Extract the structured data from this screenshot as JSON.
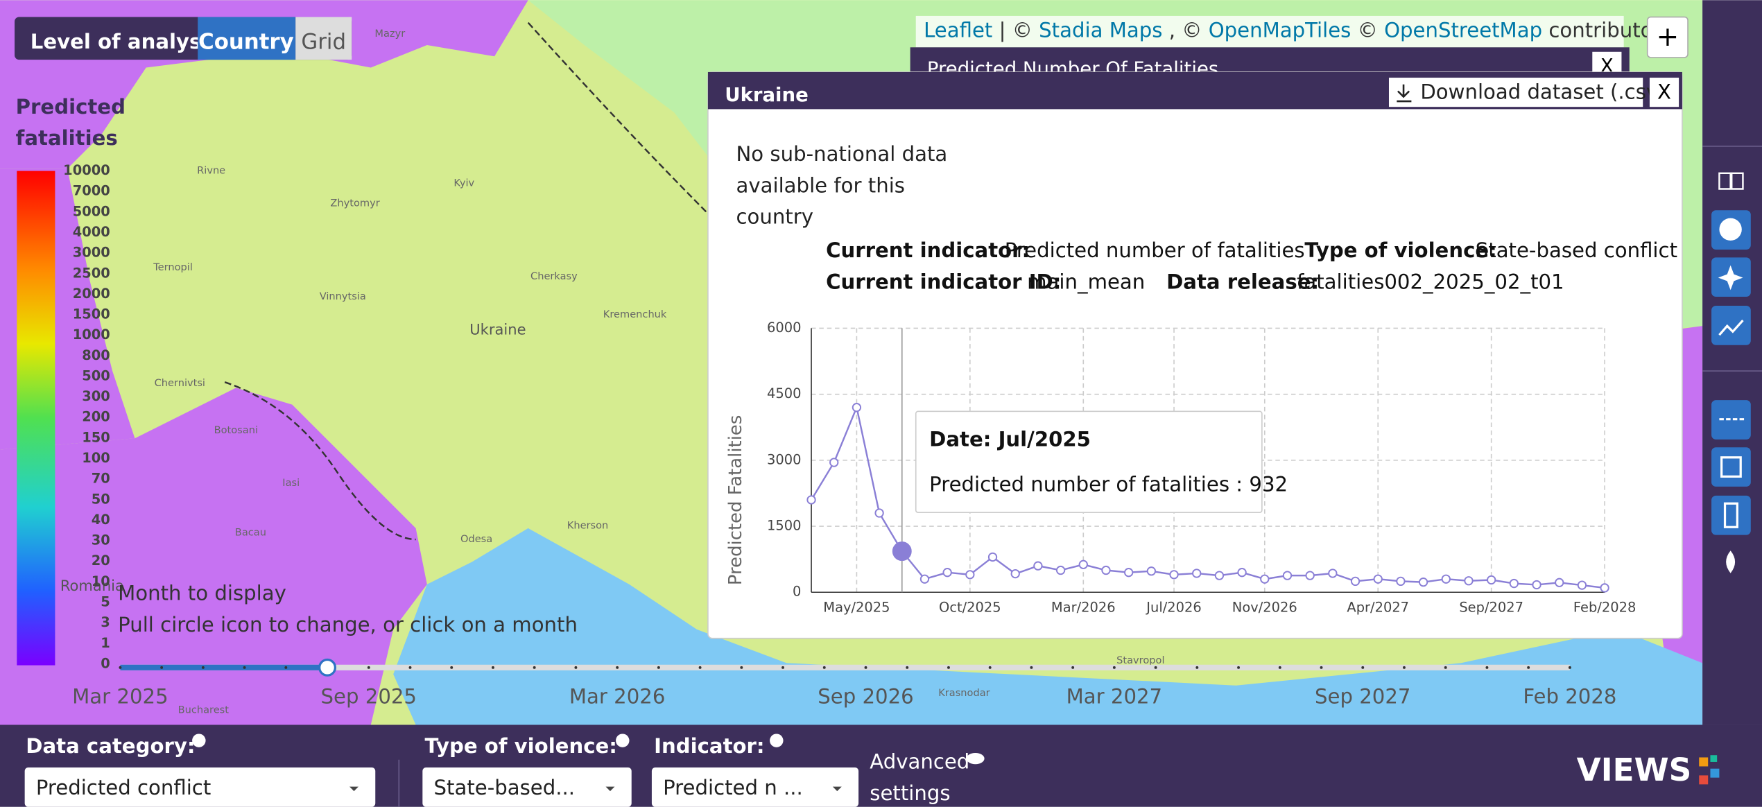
{
  "level_of_analysis": {
    "label": "Level of analysis",
    "options": [
      "Country",
      "Grid"
    ]
  },
  "attribution": [
    "Leaflet",
    "| ©",
    "Stadia Maps",
    ", ©",
    "OpenMapTiles",
    "©",
    "OpenStreetMap",
    "contributors"
  ],
  "zoom_in": "+",
  "legend": {
    "title": [
      "Predicted",
      "fatalities"
    ],
    "labels": [
      10000,
      7000,
      5000,
      4000,
      3000,
      2500,
      2000,
      1500,
      1000,
      800,
      500,
      300,
      200,
      150,
      100,
      70,
      50,
      40,
      30,
      20,
      10,
      5,
      3,
      1,
      0
    ]
  },
  "map_labels": [
    "Mazyr",
    "Rivne",
    "Zhytomyr",
    "Kyiv",
    "Ternopil",
    "Vinnytsia",
    "Cherkasy",
    "Kremenchuk",
    "Ukraine",
    "Chernivtsi",
    "Botosani",
    "Iasi",
    "Bacau",
    "Romania",
    "Odesa",
    "Kherson",
    "Krasnodar",
    "Stavropol",
    "Bucharest"
  ],
  "back_panel": {
    "title": "Predicted Number Of Fatalities",
    "close": "X"
  },
  "popup": {
    "title": "Ukraine",
    "download": "Download dataset (.csv)",
    "close": "X",
    "note": "No sub-national data available for this country",
    "meta": [
      {
        "label": "Current indicator:",
        "value": "Predicted number of fatalities"
      },
      {
        "label": "Type of violence:",
        "value": "State-based conflict"
      },
      {
        "label": "Current indicator ID:",
        "value": "main_mean"
      },
      {
        "label": "Data release:",
        "value": "fatalities002_2025_02_t01"
      }
    ],
    "tooltip": {
      "date": "Date: Jul/2025",
      "text": "Predicted number of fatalities : 932"
    }
  },
  "chart_data": {
    "type": "line",
    "y_label": "Predicted Fatalities",
    "categories": [
      null,
      null,
      "May/2025",
      null,
      null,
      null,
      null,
      "Oct/2025",
      null,
      null,
      null,
      null,
      "Mar/2026",
      null,
      null,
      null,
      "Jul/2026",
      null,
      null,
      null,
      "Nov/2026",
      null,
      null,
      null,
      null,
      "Apr/2027",
      null,
      null,
      null,
      null,
      "Sep/2027",
      null,
      null,
      null,
      null,
      "Feb/2028"
    ],
    "series": [
      {
        "name": "Predicted number of fatalities",
        "color": "#8a7fd6",
        "values": [
          2100,
          2950,
          4200,
          1800,
          932,
          300,
          450,
          400,
          800,
          420,
          600,
          500,
          630,
          500,
          450,
          480,
          400,
          430,
          380,
          450,
          300,
          380,
          380,
          430,
          250,
          300,
          250,
          230,
          300,
          260,
          280,
          200,
          170,
          220,
          160,
          100
        ]
      }
    ],
    "ylim": [
      0,
      6000
    ],
    "yticks": [
      0,
      1500,
      3000,
      4500,
      6000
    ],
    "grid": true
  },
  "timeline": {
    "title": "Month to display",
    "hint": "Pull circle icon to change, or click on a month",
    "labels": [
      "Mar 2025",
      "Sep 2025",
      "Mar 2026",
      "Sep 2026",
      "Mar 2027",
      "Sep 2027",
      "Feb 2028"
    ]
  },
  "footer": {
    "data_category": {
      "label": "Data category:",
      "value": "Predicted conflict"
    },
    "violence": {
      "label": "Type of violence:",
      "value": "State-based..."
    },
    "indicator": {
      "label": "Indicator:",
      "value": "Predicted n ..."
    },
    "advanced": [
      "Advanced",
      "settings"
    ],
    "logo": "VIEWS"
  }
}
